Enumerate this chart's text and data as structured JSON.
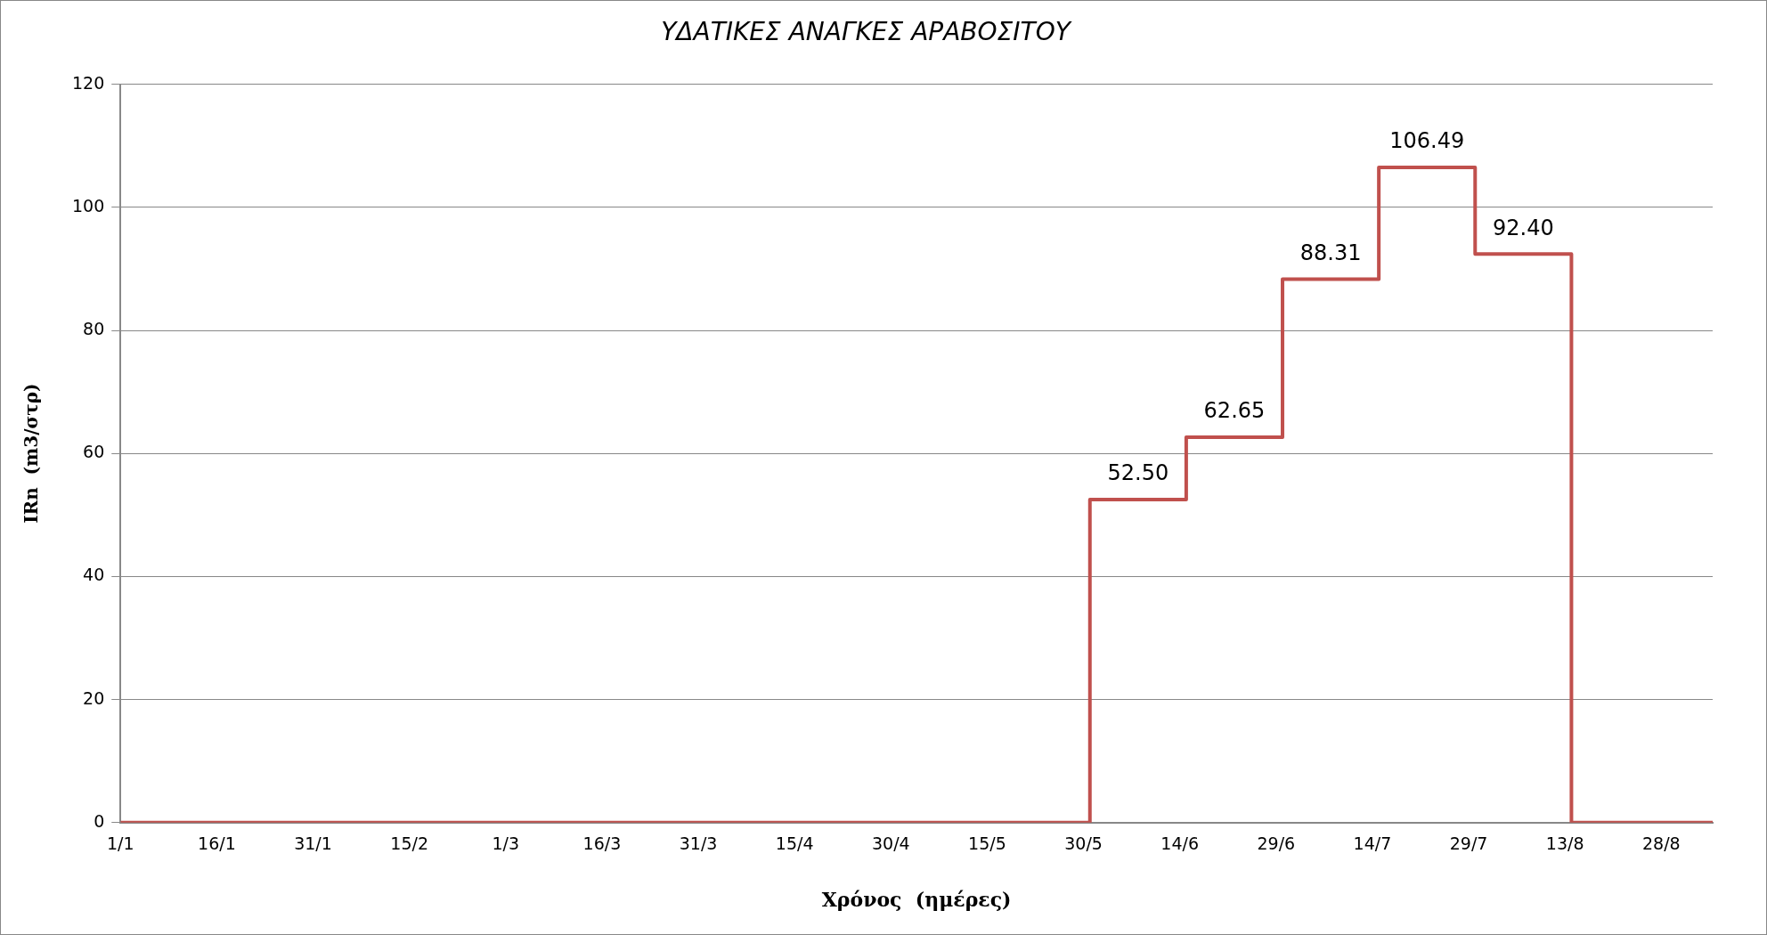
{
  "chart_data": {
    "type": "step",
    "title": "ΥΔΑΤΙΚΕΣ ΑΝΑΓΚΕΣ ΑΡΑΒΟΣΙΤΟΥ",
    "xlabel": "Χρόνος  (ημέρες)",
    "ylabel": "IRn  (m3/στρ)",
    "x": [
      "--01-01",
      "--05-31",
      "--06-15",
      "--06-30",
      "--07-15",
      "--07-30",
      "--08-14",
      "--09-05"
    ],
    "series": [
      {
        "color": "#c0504d",
        "values": [
          0,
          52.5,
          62.65,
          88.31,
          106.49,
          92.4,
          0,
          0
        ],
        "value_labels": [
          null,
          "52.50",
          "62.65",
          "88.31",
          "106.49",
          "92.40",
          null,
          null
        ]
      }
    ],
    "xlim": [
      "--01-01",
      "--09-05"
    ],
    "xticks": [
      {
        "value": "--01-01",
        "label": "1/1"
      },
      {
        "value": "--01-16",
        "label": "16/1"
      },
      {
        "value": "--01-31",
        "label": "31/1"
      },
      {
        "value": "--02-15",
        "label": "15/2"
      },
      {
        "value": "--03-01",
        "label": "1/3"
      },
      {
        "value": "--03-16",
        "label": "16/3"
      },
      {
        "value": "--03-31",
        "label": "31/3"
      },
      {
        "value": "--04-15",
        "label": "15/4"
      },
      {
        "value": "--04-30",
        "label": "30/4"
      },
      {
        "value": "--05-15",
        "label": "15/5"
      },
      {
        "value": "--05-30",
        "label": "30/5"
      },
      {
        "value": "--06-14",
        "label": "14/6"
      },
      {
        "value": "--06-29",
        "label": "29/6"
      },
      {
        "value": "--07-14",
        "label": "14/7"
      },
      {
        "value": "--07-29",
        "label": "29/7"
      },
      {
        "value": "--08-13",
        "label": "13/8"
      },
      {
        "value": "--08-28",
        "label": "28/8"
      }
    ],
    "ylim": [
      0,
      120
    ],
    "yticks": [
      0,
      20,
      40,
      60,
      80,
      100,
      120
    ],
    "grid": "y",
    "legend": false,
    "marker": "none"
  }
}
